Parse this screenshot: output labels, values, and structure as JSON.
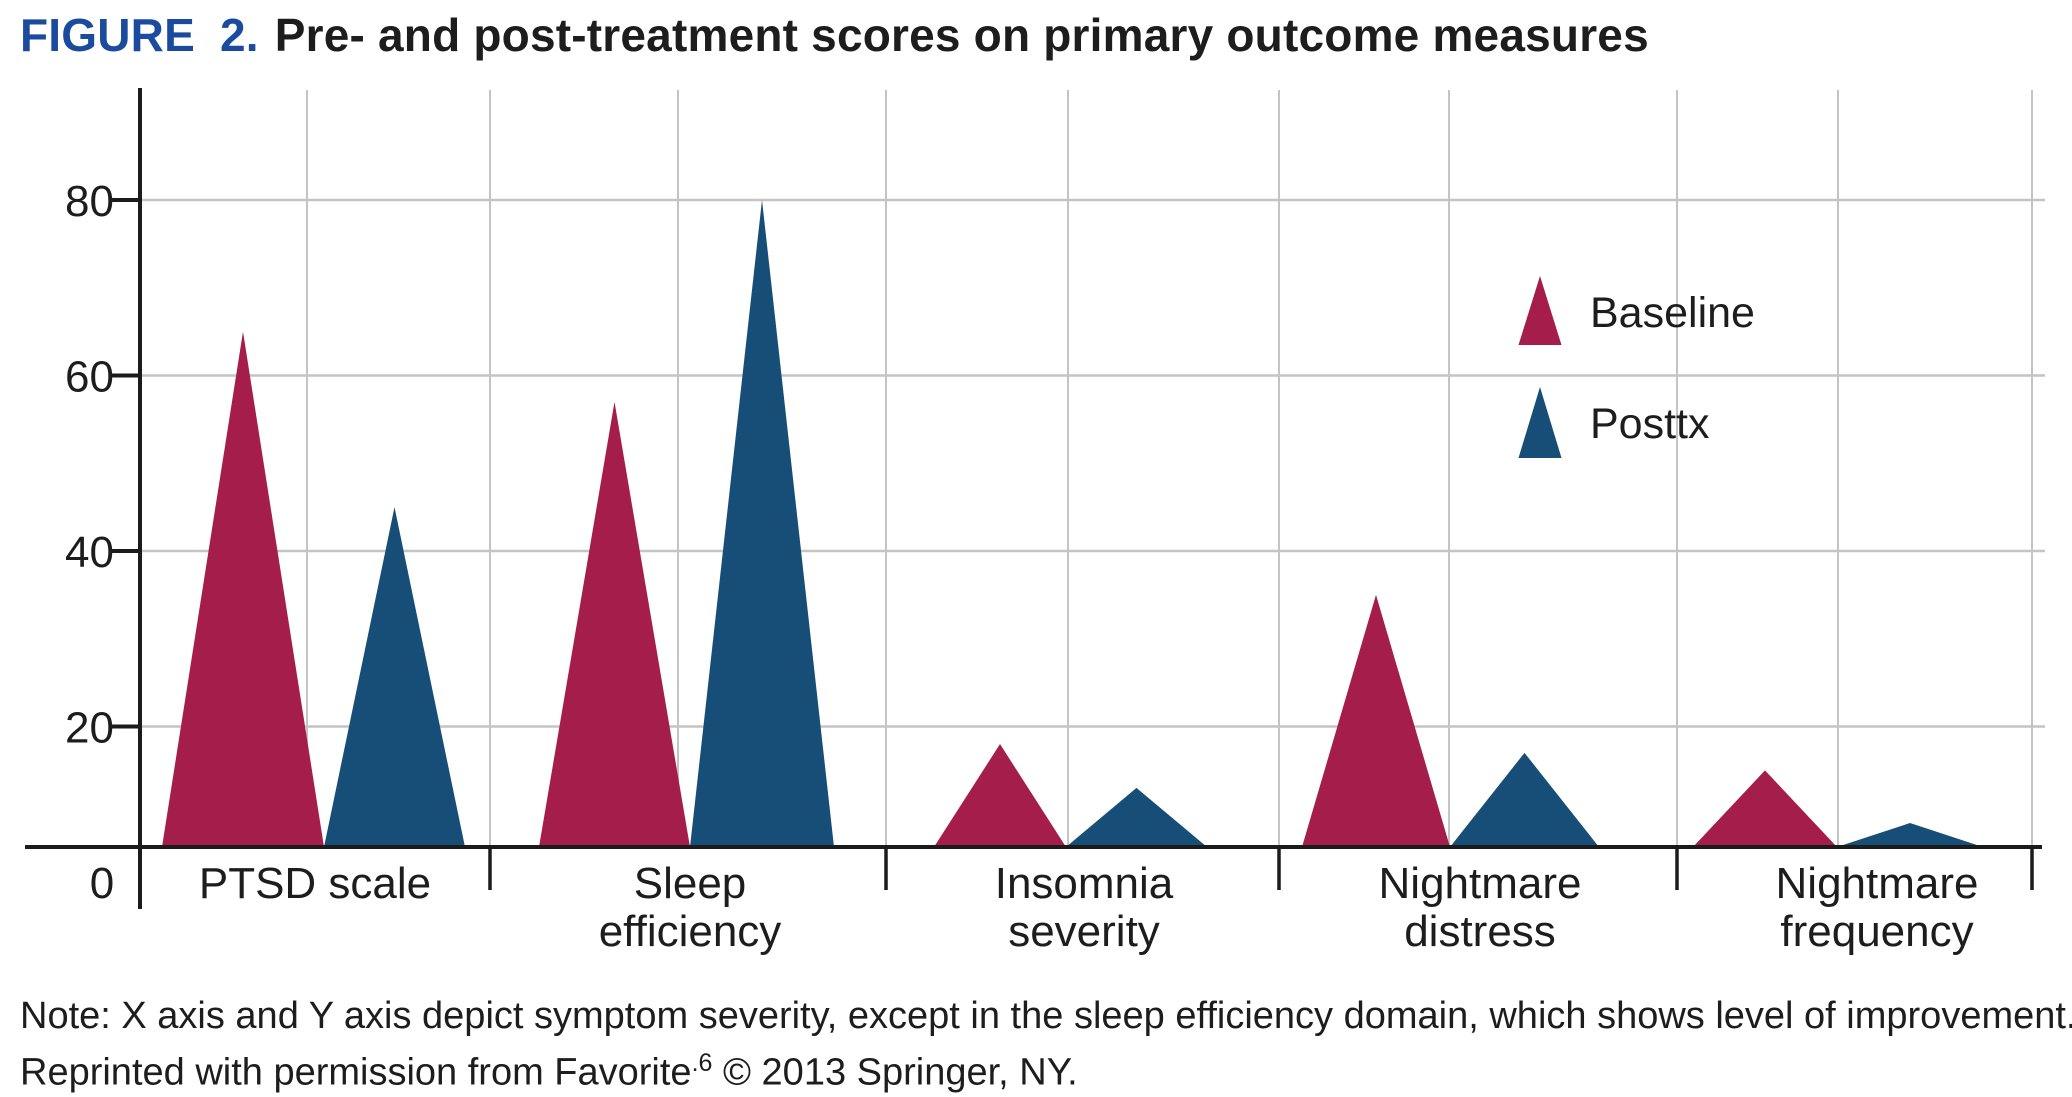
{
  "title": {
    "figure_label": "FIGURE 2.",
    "main": "Pre- and post-treatment scores on primary outcome measures"
  },
  "note": {
    "line1": "Note: X axis and Y axis depict symptom severity, except in the sleep efficiency domain, which shows level of improvement.",
    "line2_prefix": "Reprinted with permission from Favorite",
    "line2_sup": ".6",
    "line2_suffix": " © 2013 Springer, NY."
  },
  "colors": {
    "figure_label_blue": "#1b4b9e",
    "baseline_red": "#a51e4b",
    "posttx_blue": "#174e77",
    "axis": "#1b1b1b",
    "grid": "#c4c4c4",
    "text": "#1d1d1d"
  },
  "chart_data": {
    "type": "bar",
    "bar_shape": "triangle",
    "title": "Pre- and post-treatment scores on primary outcome measures",
    "xlabel": "",
    "ylabel": "",
    "ylim": [
      0,
      90
    ],
    "yticks": [
      0,
      20,
      40,
      60,
      80
    ],
    "grid": true,
    "legend_position": "top-right-inside",
    "categories": [
      {
        "name": "ptsd-scale",
        "label_lines": [
          "PTSD scale"
        ]
      },
      {
        "name": "sleep-efficiency",
        "label_lines": [
          "Sleep",
          "efficiency"
        ]
      },
      {
        "name": "insomnia-severity",
        "label_lines": [
          "Insomnia",
          "severity"
        ]
      },
      {
        "name": "nightmare-distress",
        "label_lines": [
          "Nightmare",
          "distress"
        ]
      },
      {
        "name": "nightmare-frequency",
        "label_lines": [
          "Nightmare",
          "frequency"
        ]
      }
    ],
    "series": [
      {
        "name": "Baseline",
        "color": "#a51e4b",
        "values": [
          65,
          57,
          18,
          35,
          15
        ]
      },
      {
        "name": "Posttx",
        "color": "#174e77",
        "values": [
          45,
          80,
          13,
          17,
          9
        ]
      }
    ]
  }
}
